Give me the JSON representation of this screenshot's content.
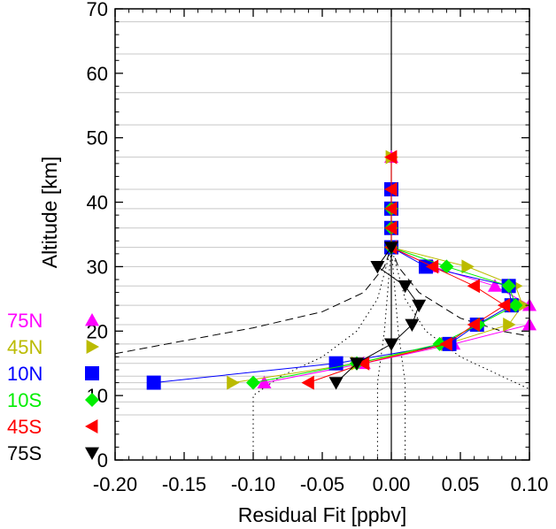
{
  "chart_data": {
    "type": "line",
    "xlabel": "Residual Fit [ppbv]",
    "ylabel": "Altitude [km]",
    "xlim": [
      -0.2,
      0.1
    ],
    "ylim": [
      0,
      70
    ],
    "xticks": [
      -0.2,
      -0.15,
      -0.1,
      -0.05,
      0.0,
      0.05,
      0.1
    ],
    "xtick_labels": [
      "-0.20",
      "-0.15",
      "-0.10",
      "-0.05",
      "0.00",
      "0.05",
      "0.10"
    ],
    "yticks": [
      0,
      10,
      20,
      30,
      40,
      50,
      60,
      70
    ],
    "ytick_labels": [
      "0",
      "10",
      "20",
      "30",
      "40",
      "50",
      "60",
      "70"
    ],
    "grid": "horizontal",
    "grid_altitudes": [
      7,
      9,
      11,
      12,
      13,
      15,
      16,
      18,
      21,
      24,
      27,
      30,
      33,
      36,
      39,
      42,
      47,
      52,
      57,
      63,
      68
    ],
    "legend_position": "left",
    "series": [
      {
        "name": "75N",
        "color": "#ff00ff",
        "marker": "triangle-up",
        "points": [
          [
            -0.092,
            12
          ],
          [
            -0.02,
            15
          ],
          [
            0.045,
            18
          ],
          [
            0.1,
            21
          ],
          [
            0.1,
            24
          ],
          [
            0.075,
            27
          ],
          [
            0.03,
            30
          ],
          [
            0.0,
            33
          ],
          [
            0.0,
            36
          ],
          [
            0.0,
            39
          ],
          [
            0.0,
            42
          ],
          [
            0.0,
            47
          ]
        ]
      },
      {
        "name": "45N",
        "color": "#bbbb00",
        "marker": "triangle-right",
        "points": [
          [
            -0.115,
            12
          ],
          [
            -0.025,
            15
          ],
          [
            0.04,
            18
          ],
          [
            0.085,
            21
          ],
          [
            0.095,
            24
          ],
          [
            0.09,
            27
          ],
          [
            0.055,
            30
          ],
          [
            0.0,
            33
          ],
          [
            0.0,
            36
          ],
          [
            0.0,
            39
          ],
          [
            0.0,
            42
          ],
          [
            0.0,
            47
          ]
        ]
      },
      {
        "name": "10N",
        "color": "#0000ff",
        "marker": "square",
        "points": [
          [
            -0.172,
            12
          ],
          [
            -0.04,
            15
          ],
          [
            0.042,
            18
          ],
          [
            0.062,
            21
          ],
          [
            0.087,
            24
          ],
          [
            0.085,
            27
          ],
          [
            0.025,
            30
          ],
          [
            0.0,
            33
          ],
          [
            0.0,
            36
          ],
          [
            0.0,
            39
          ],
          [
            0.0,
            42
          ]
        ]
      },
      {
        "name": "10S",
        "color": "#00ee00",
        "marker": "diamond",
        "points": [
          [
            -0.1,
            12
          ],
          [
            -0.025,
            15
          ],
          [
            0.035,
            18
          ],
          [
            0.063,
            21
          ],
          [
            0.09,
            24
          ],
          [
            0.085,
            27
          ],
          [
            0.04,
            30
          ],
          [
            0.0,
            33
          ],
          [
            0.0,
            36
          ],
          [
            0.0,
            39
          ]
        ]
      },
      {
        "name": "45S",
        "color": "#ff0000",
        "marker": "triangle-left",
        "points": [
          [
            -0.06,
            12
          ],
          [
            -0.02,
            15
          ],
          [
            0.04,
            18
          ],
          [
            0.06,
            21
          ],
          [
            0.082,
            24
          ],
          [
            0.06,
            27
          ],
          [
            0.03,
            30
          ],
          [
            0.0,
            33
          ],
          [
            0.0,
            36
          ],
          [
            0.0,
            39
          ],
          [
            0.0,
            42
          ],
          [
            0.0,
            47
          ]
        ]
      },
      {
        "name": "75S",
        "color": "#000000",
        "marker": "triangle-down",
        "points": [
          [
            -0.04,
            12
          ],
          [
            -0.025,
            15
          ],
          [
            0.0,
            18
          ],
          [
            0.015,
            21
          ],
          [
            0.02,
            24
          ],
          [
            0.01,
            27
          ],
          [
            -0.01,
            30
          ],
          [
            0.0,
            33
          ]
        ]
      }
    ],
    "reference_lines": [
      {
        "style": "dashed",
        "points": [
          [
            -0.2,
            16.5
          ],
          [
            -0.15,
            18.5
          ],
          [
            -0.1,
            20.5
          ],
          [
            -0.05,
            23
          ],
          [
            -0.02,
            26
          ],
          [
            -0.005,
            30
          ],
          [
            0.0,
            33
          ],
          [
            0.005,
            30
          ],
          [
            0.02,
            26
          ],
          [
            0.05,
            22
          ],
          [
            0.08,
            20
          ],
          [
            0.1,
            19.2
          ]
        ]
      },
      {
        "style": "dotted",
        "points": [
          [
            -0.1,
            0
          ],
          [
            -0.1,
            10
          ],
          [
            -0.08,
            13
          ],
          [
            -0.05,
            16
          ],
          [
            -0.025,
            20
          ],
          [
            -0.01,
            25
          ],
          [
            0.0,
            33
          ],
          [
            0.01,
            25
          ],
          [
            0.025,
            20
          ],
          [
            0.05,
            16
          ],
          [
            0.08,
            13
          ],
          [
            0.1,
            11
          ]
        ]
      },
      {
        "style": "dotted",
        "points": [
          [
            -0.01,
            0
          ],
          [
            -0.01,
            12
          ],
          [
            -0.005,
            20
          ],
          [
            0.0,
            33
          ],
          [
            0.005,
            20
          ],
          [
            0.01,
            12
          ],
          [
            0.01,
            0
          ]
        ]
      }
    ]
  }
}
